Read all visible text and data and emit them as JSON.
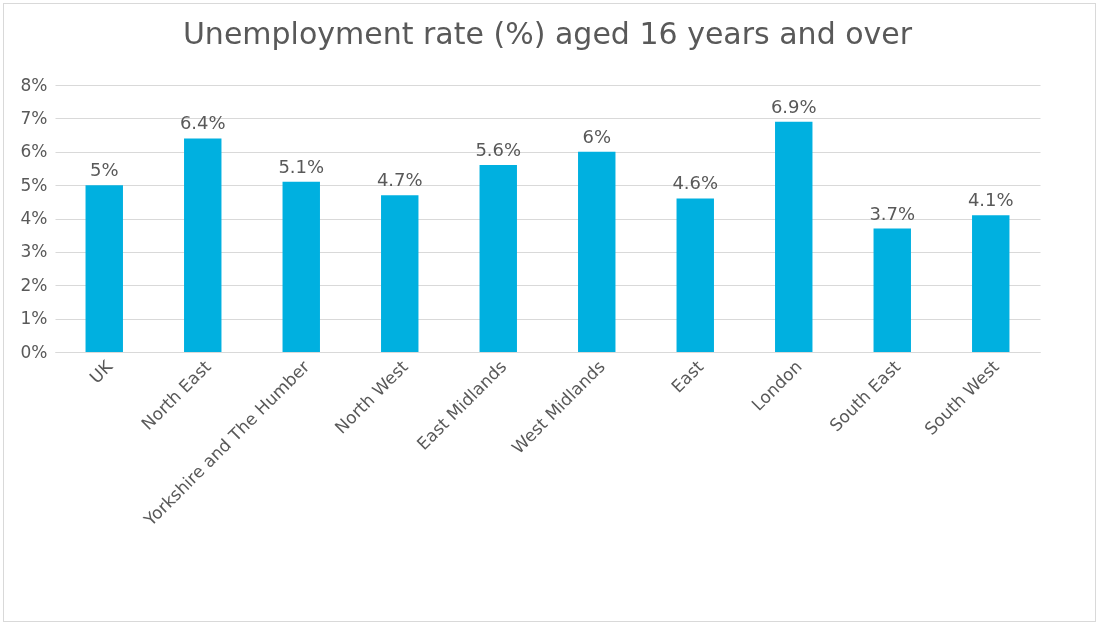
{
  "chart_data": {
    "type": "bar",
    "title": "Unemployment rate (%) aged 16 years and over",
    "categories": [
      "UK",
      "North East",
      "Yorkshire and The Humber",
      "North West",
      "East Midlands",
      "West Midlands",
      "East",
      "London",
      "South East",
      "South West"
    ],
    "values": [
      5,
      6.4,
      5.1,
      4.7,
      5.6,
      6,
      4.6,
      6.9,
      3.7,
      4.1
    ],
    "value_labels": [
      "5%",
      "6.4%",
      "5.1%",
      "4.7%",
      "5.6%",
      "6%",
      "4.6%",
      "6.9%",
      "3.7%",
      "4.1%"
    ],
    "color": "#00b0e0",
    "ylim": [
      0,
      8
    ],
    "yticks": [
      {
        "value": 0,
        "label": "0%"
      },
      {
        "value": 1,
        "label": "1%"
      },
      {
        "value": 2,
        "label": "2%"
      },
      {
        "value": 3,
        "label": "3%"
      },
      {
        "value": 4,
        "label": "4%"
      },
      {
        "value": 5,
        "label": "5%"
      },
      {
        "value": 6,
        "label": "6%"
      },
      {
        "value": 7,
        "label": "7%"
      },
      {
        "value": 8,
        "label": "8%"
      }
    ],
    "grid": "y"
  }
}
